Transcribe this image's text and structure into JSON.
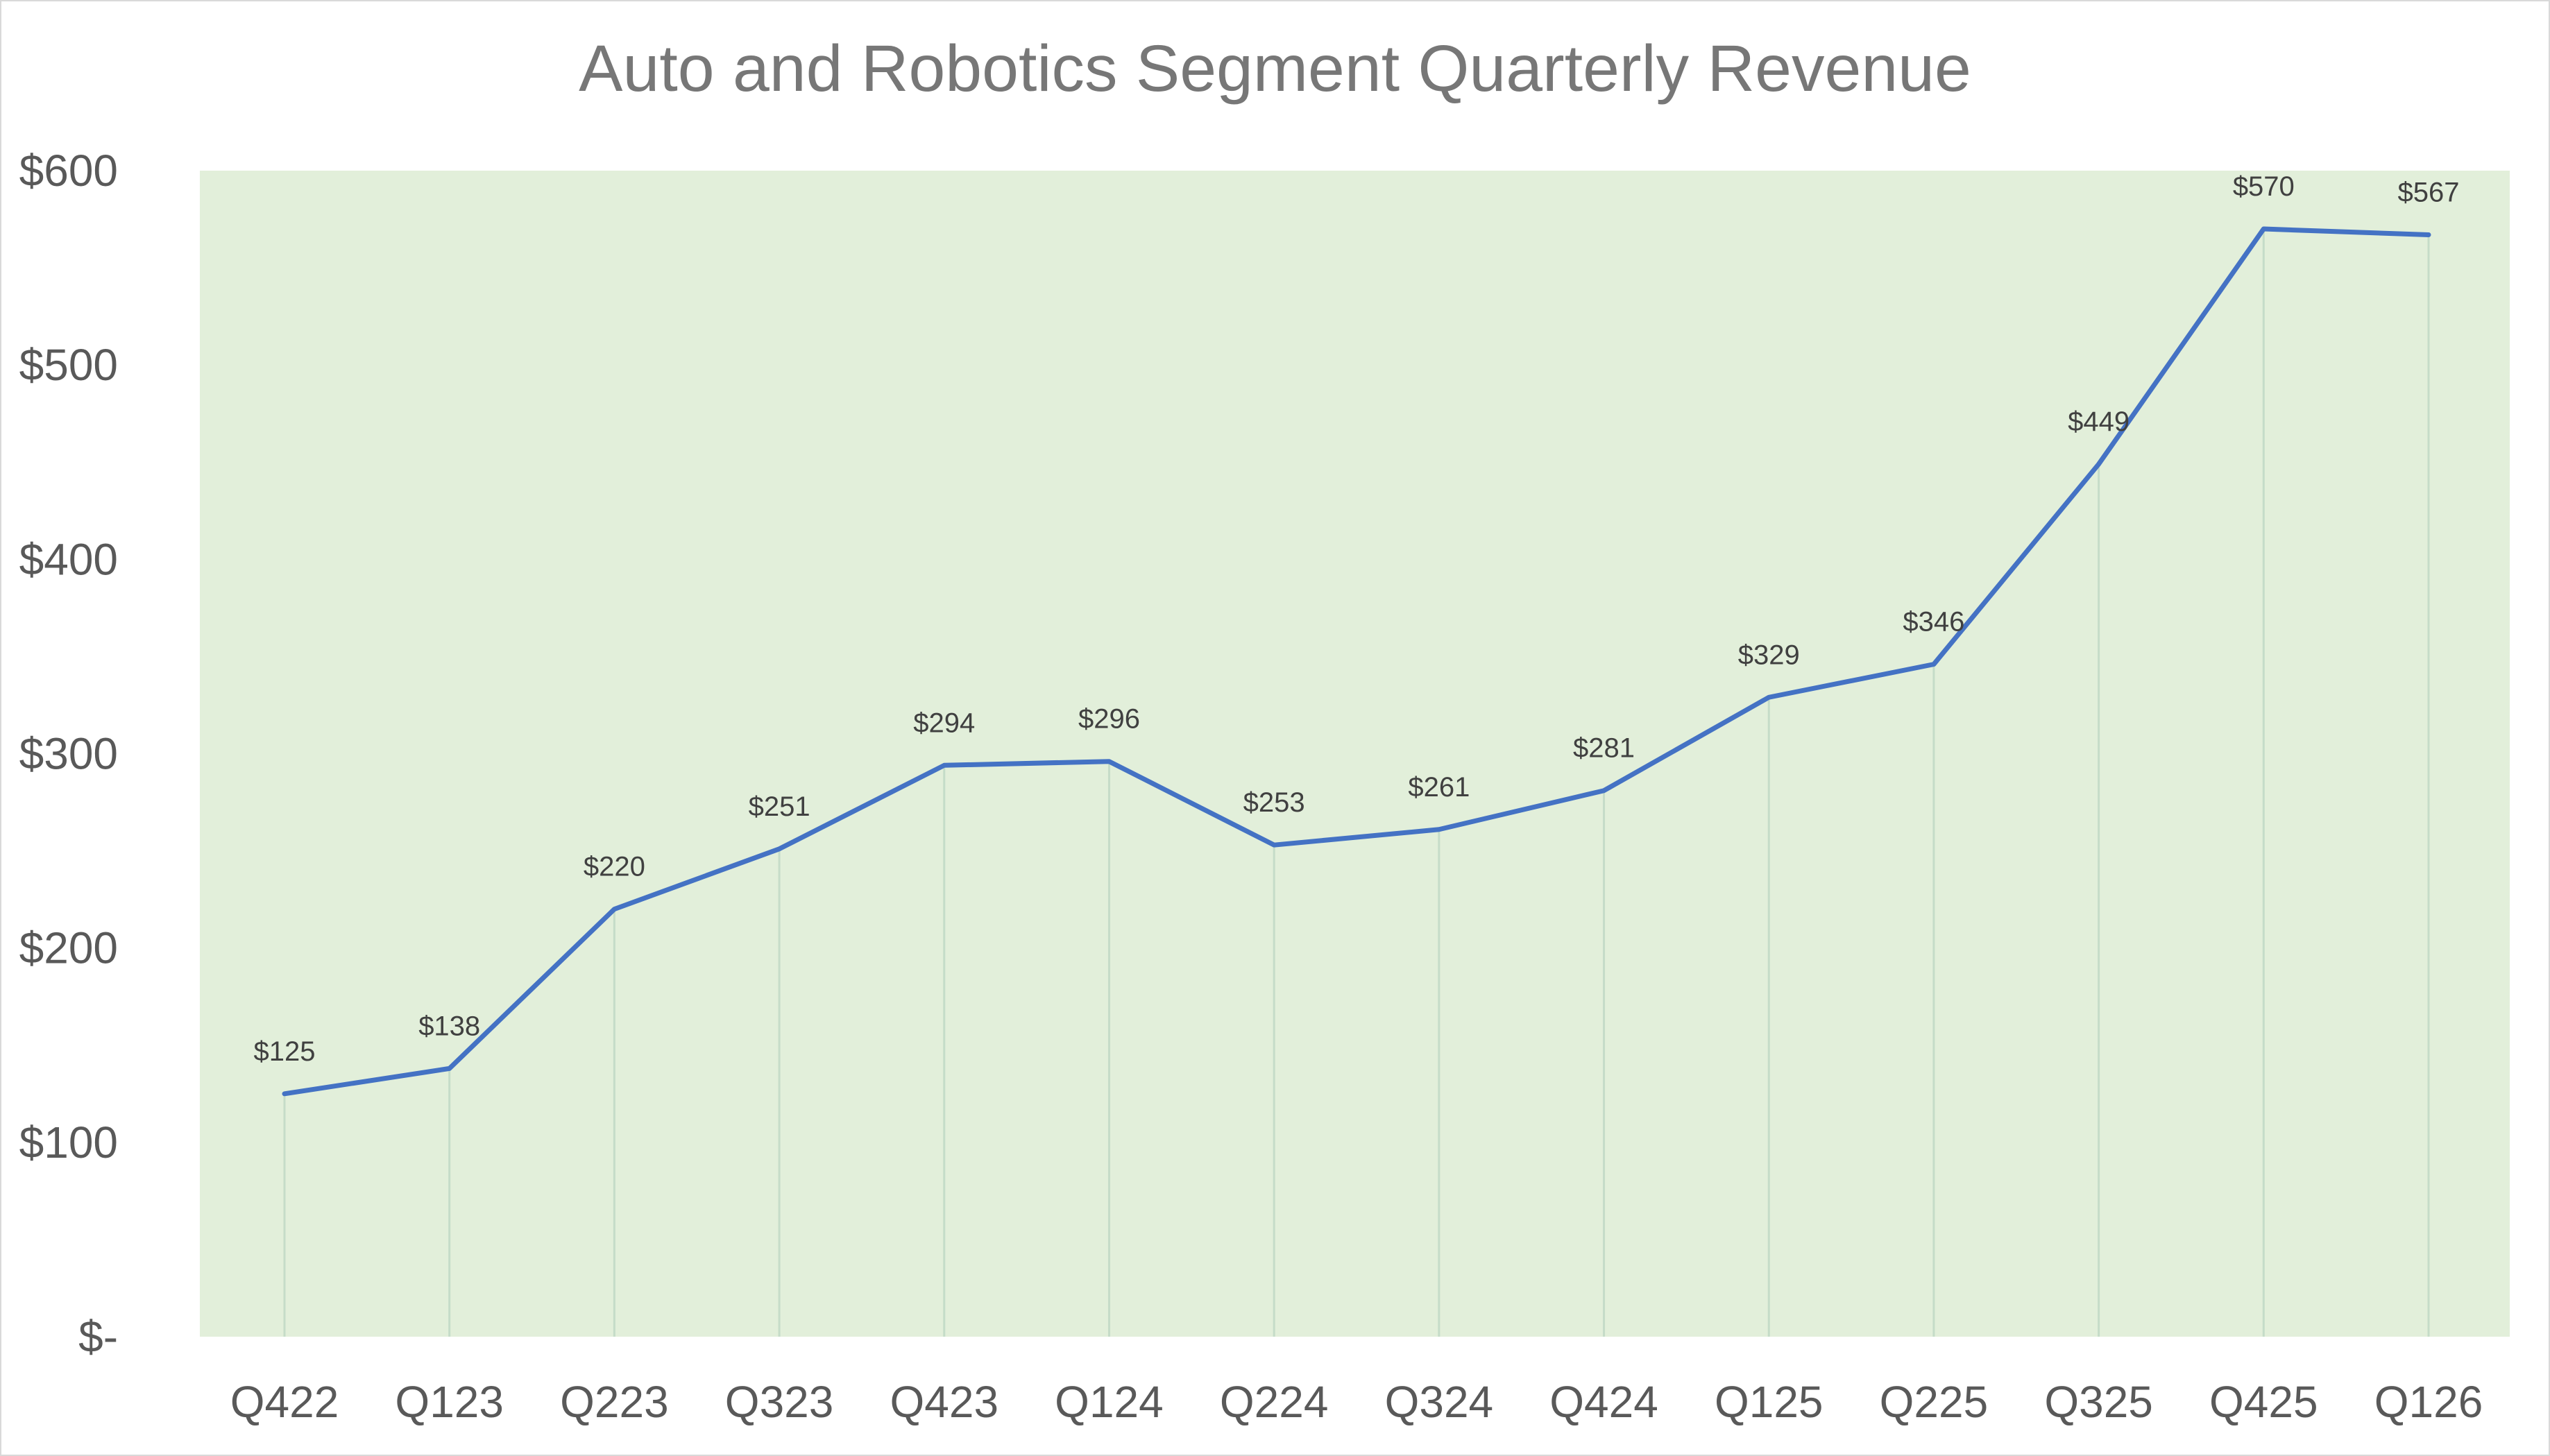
{
  "chart_data": {
    "type": "line",
    "title": "Auto and Robotics Segment Quarterly Revenue",
    "xlabel": "",
    "ylabel": "",
    "categories": [
      "Q422",
      "Q123",
      "Q223",
      "Q323",
      "Q423",
      "Q124",
      "Q224",
      "Q324",
      "Q424",
      "Q125",
      "Q225",
      "Q325",
      "Q425",
      "Q126"
    ],
    "series": [
      {
        "values": [
          125,
          138,
          220,
          251,
          294,
          296,
          253,
          261,
          281,
          329,
          346,
          449,
          570,
          567
        ],
        "data_labels": [
          "$125",
          "$138",
          "$220",
          "$251",
          "$294",
          "$296",
          "$253",
          "$261",
          "$281",
          "$329",
          "$346",
          "$449",
          "$570",
          "$567"
        ],
        "color": "#4472c4"
      }
    ],
    "ylim": [
      0,
      600
    ],
    "yticks": [
      0,
      100,
      200,
      300,
      400,
      500,
      600
    ],
    "ytick_labels": [
      "$-",
      "$100",
      "$200",
      "$300",
      "$400",
      "$500",
      "$600"
    ],
    "plot_background": "#e2efda",
    "drop_lines": true,
    "drop_line_color": "#c5dcc8",
    "grid": false,
    "legend": "none"
  }
}
